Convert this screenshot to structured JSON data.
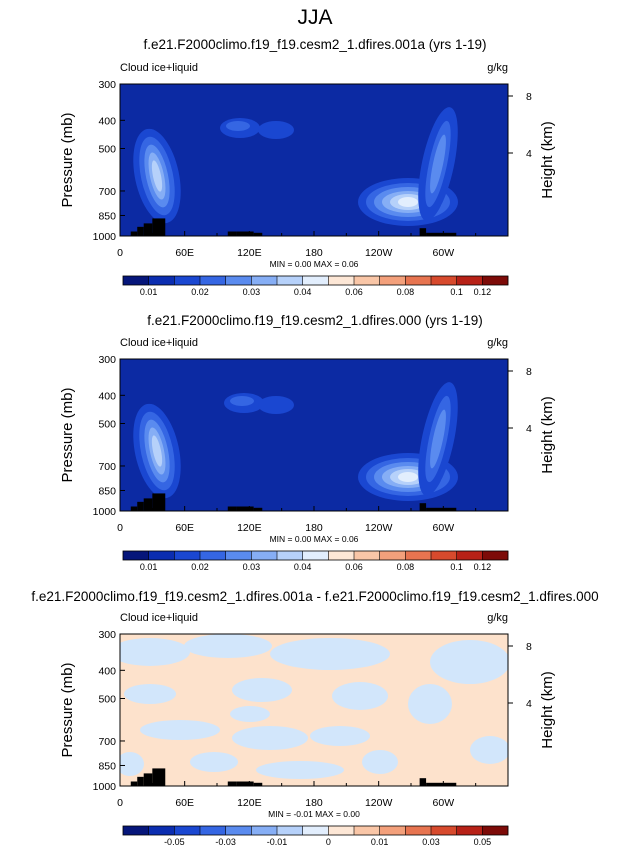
{
  "main_title": "JJA",
  "colors": {
    "panel_bg_abs": "#0c2aa3",
    "panel_bg_diff": "#fde2cc",
    "diff_blue": "#d2e6fb",
    "topo": "#000000",
    "line": "#000000"
  },
  "shared": {
    "field_label": "Cloud ice+liquid",
    "units": "g/kg",
    "ylabel_left": "Pressure (mb)",
    "ylabel_right": "Height (km)",
    "y_ticks": [
      "300",
      "400",
      "500",
      "700",
      "850",
      "1000"
    ],
    "y2_ticks": [
      "8",
      "4"
    ],
    "x_ticks": [
      "0",
      "60E",
      "120E",
      "180",
      "120W",
      "60W"
    ]
  },
  "chart_data": [
    {
      "type": "heatmap",
      "title": "f.e21.F2000climo.f19_f19.cesm2_1.dfires.001a (yrs 1-19)",
      "stats": "MIN =   0.00  MAX =   0.06",
      "xrange": [
        0,
        360
      ],
      "ylim_mb": [
        1000,
        300
      ],
      "colorbar": {
        "labels": [
          "0.01",
          "0.02",
          "0.03",
          "0.04",
          "0.06",
          "0.08",
          "0.1",
          "0.12"
        ],
        "colors": [
          "#06167a",
          "#0b2db0",
          "#1a47d1",
          "#3566e3",
          "#5a8bef",
          "#86aef5",
          "#b6d1fa",
          "#e2eefd",
          "#fde7d6",
          "#f9c6a7",
          "#f3a07b",
          "#e77450",
          "#d74a2d",
          "#b72117",
          "#7d0b08"
        ]
      }
    },
    {
      "type": "heatmap",
      "title": "f.e21.F2000climo.f19_f19.cesm2_1.dfires.000 (yrs 1-19)",
      "stats": "MIN =   0.00  MAX =   0.06",
      "xrange": [
        0,
        360
      ],
      "ylim_mb": [
        1000,
        300
      ],
      "colorbar": {
        "labels": [
          "0.01",
          "0.02",
          "0.03",
          "0.04",
          "0.06",
          "0.08",
          "0.1",
          "0.12"
        ],
        "colors": [
          "#06167a",
          "#0b2db0",
          "#1a47d1",
          "#3566e3",
          "#5a8bef",
          "#86aef5",
          "#b6d1fa",
          "#e2eefd",
          "#fde7d6",
          "#f9c6a7",
          "#f3a07b",
          "#e77450",
          "#d74a2d",
          "#b72117",
          "#7d0b08"
        ]
      }
    },
    {
      "type": "heatmap",
      "title": "f.e21.F2000climo.f19_f19.cesm2_1.dfires.001a - f.e21.F2000climo.f19_f19.cesm2_1.dfires.000",
      "stats": "MIN =  -0.01  MAX =   0.00",
      "xrange": [
        0,
        360
      ],
      "ylim_mb": [
        1000,
        300
      ],
      "colorbar": {
        "labels": [
          "-0.05",
          "-0.03",
          "-0.01",
          "0",
          "0.01",
          "0.03",
          "0.05"
        ],
        "colors": [
          "#06167a",
          "#0b2db0",
          "#1a47d1",
          "#3566e3",
          "#5a8bef",
          "#86aef5",
          "#b6d1fa",
          "#e2eefd",
          "#fde7d6",
          "#f9c6a7",
          "#f3a07b",
          "#e77450",
          "#d74a2d",
          "#b72117",
          "#7d0b08"
        ]
      }
    }
  ]
}
